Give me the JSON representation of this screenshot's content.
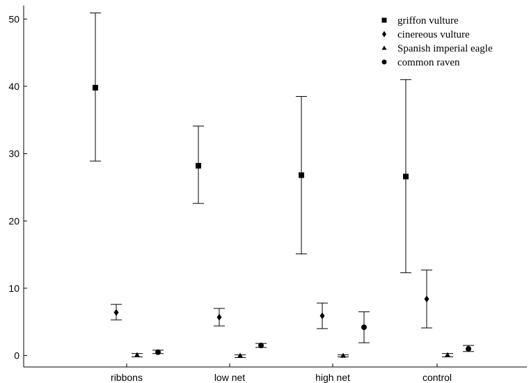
{
  "chart_data": {
    "type": "scatter",
    "title": "",
    "xlabel": "",
    "ylabel": "",
    "categories": [
      "ribbons",
      "low net",
      "high net",
      "control"
    ],
    "ylim": [
      -1.7,
      52
    ],
    "yticks": [
      0,
      10,
      20,
      30,
      40,
      50
    ],
    "grid": false,
    "legend_position": "top-right",
    "error_bars": true,
    "series": [
      {
        "name": "griffon vulture",
        "marker": "square",
        "values": [
          39.8,
          28.2,
          26.8,
          26.6
        ],
        "lower": [
          28.9,
          22.6,
          15.1,
          12.3
        ],
        "upper": [
          50.9,
          34.1,
          38.5,
          41.0
        ]
      },
      {
        "name": "cinereous vulture",
        "marker": "diamond",
        "values": [
          6.4,
          5.7,
          5.9,
          8.4
        ],
        "lower": [
          5.3,
          4.4,
          4.0,
          4.1
        ],
        "upper": [
          7.6,
          7.0,
          7.8,
          12.7
        ]
      },
      {
        "name": "Spanish imperial eagle",
        "marker": "triangle",
        "values": [
          0.1,
          0.0,
          0.0,
          0.1
        ],
        "lower": [
          -0.2,
          -0.3,
          -0.2,
          -0.2
        ],
        "upper": [
          0.3,
          0.1,
          0.1,
          0.3
        ]
      },
      {
        "name": "common raven",
        "marker": "circle",
        "values": [
          0.5,
          1.5,
          4.2,
          1.0
        ],
        "lower": [
          0.3,
          1.2,
          1.9,
          0.6
        ],
        "upper": [
          0.8,
          1.8,
          6.5,
          1.5
        ]
      }
    ]
  }
}
